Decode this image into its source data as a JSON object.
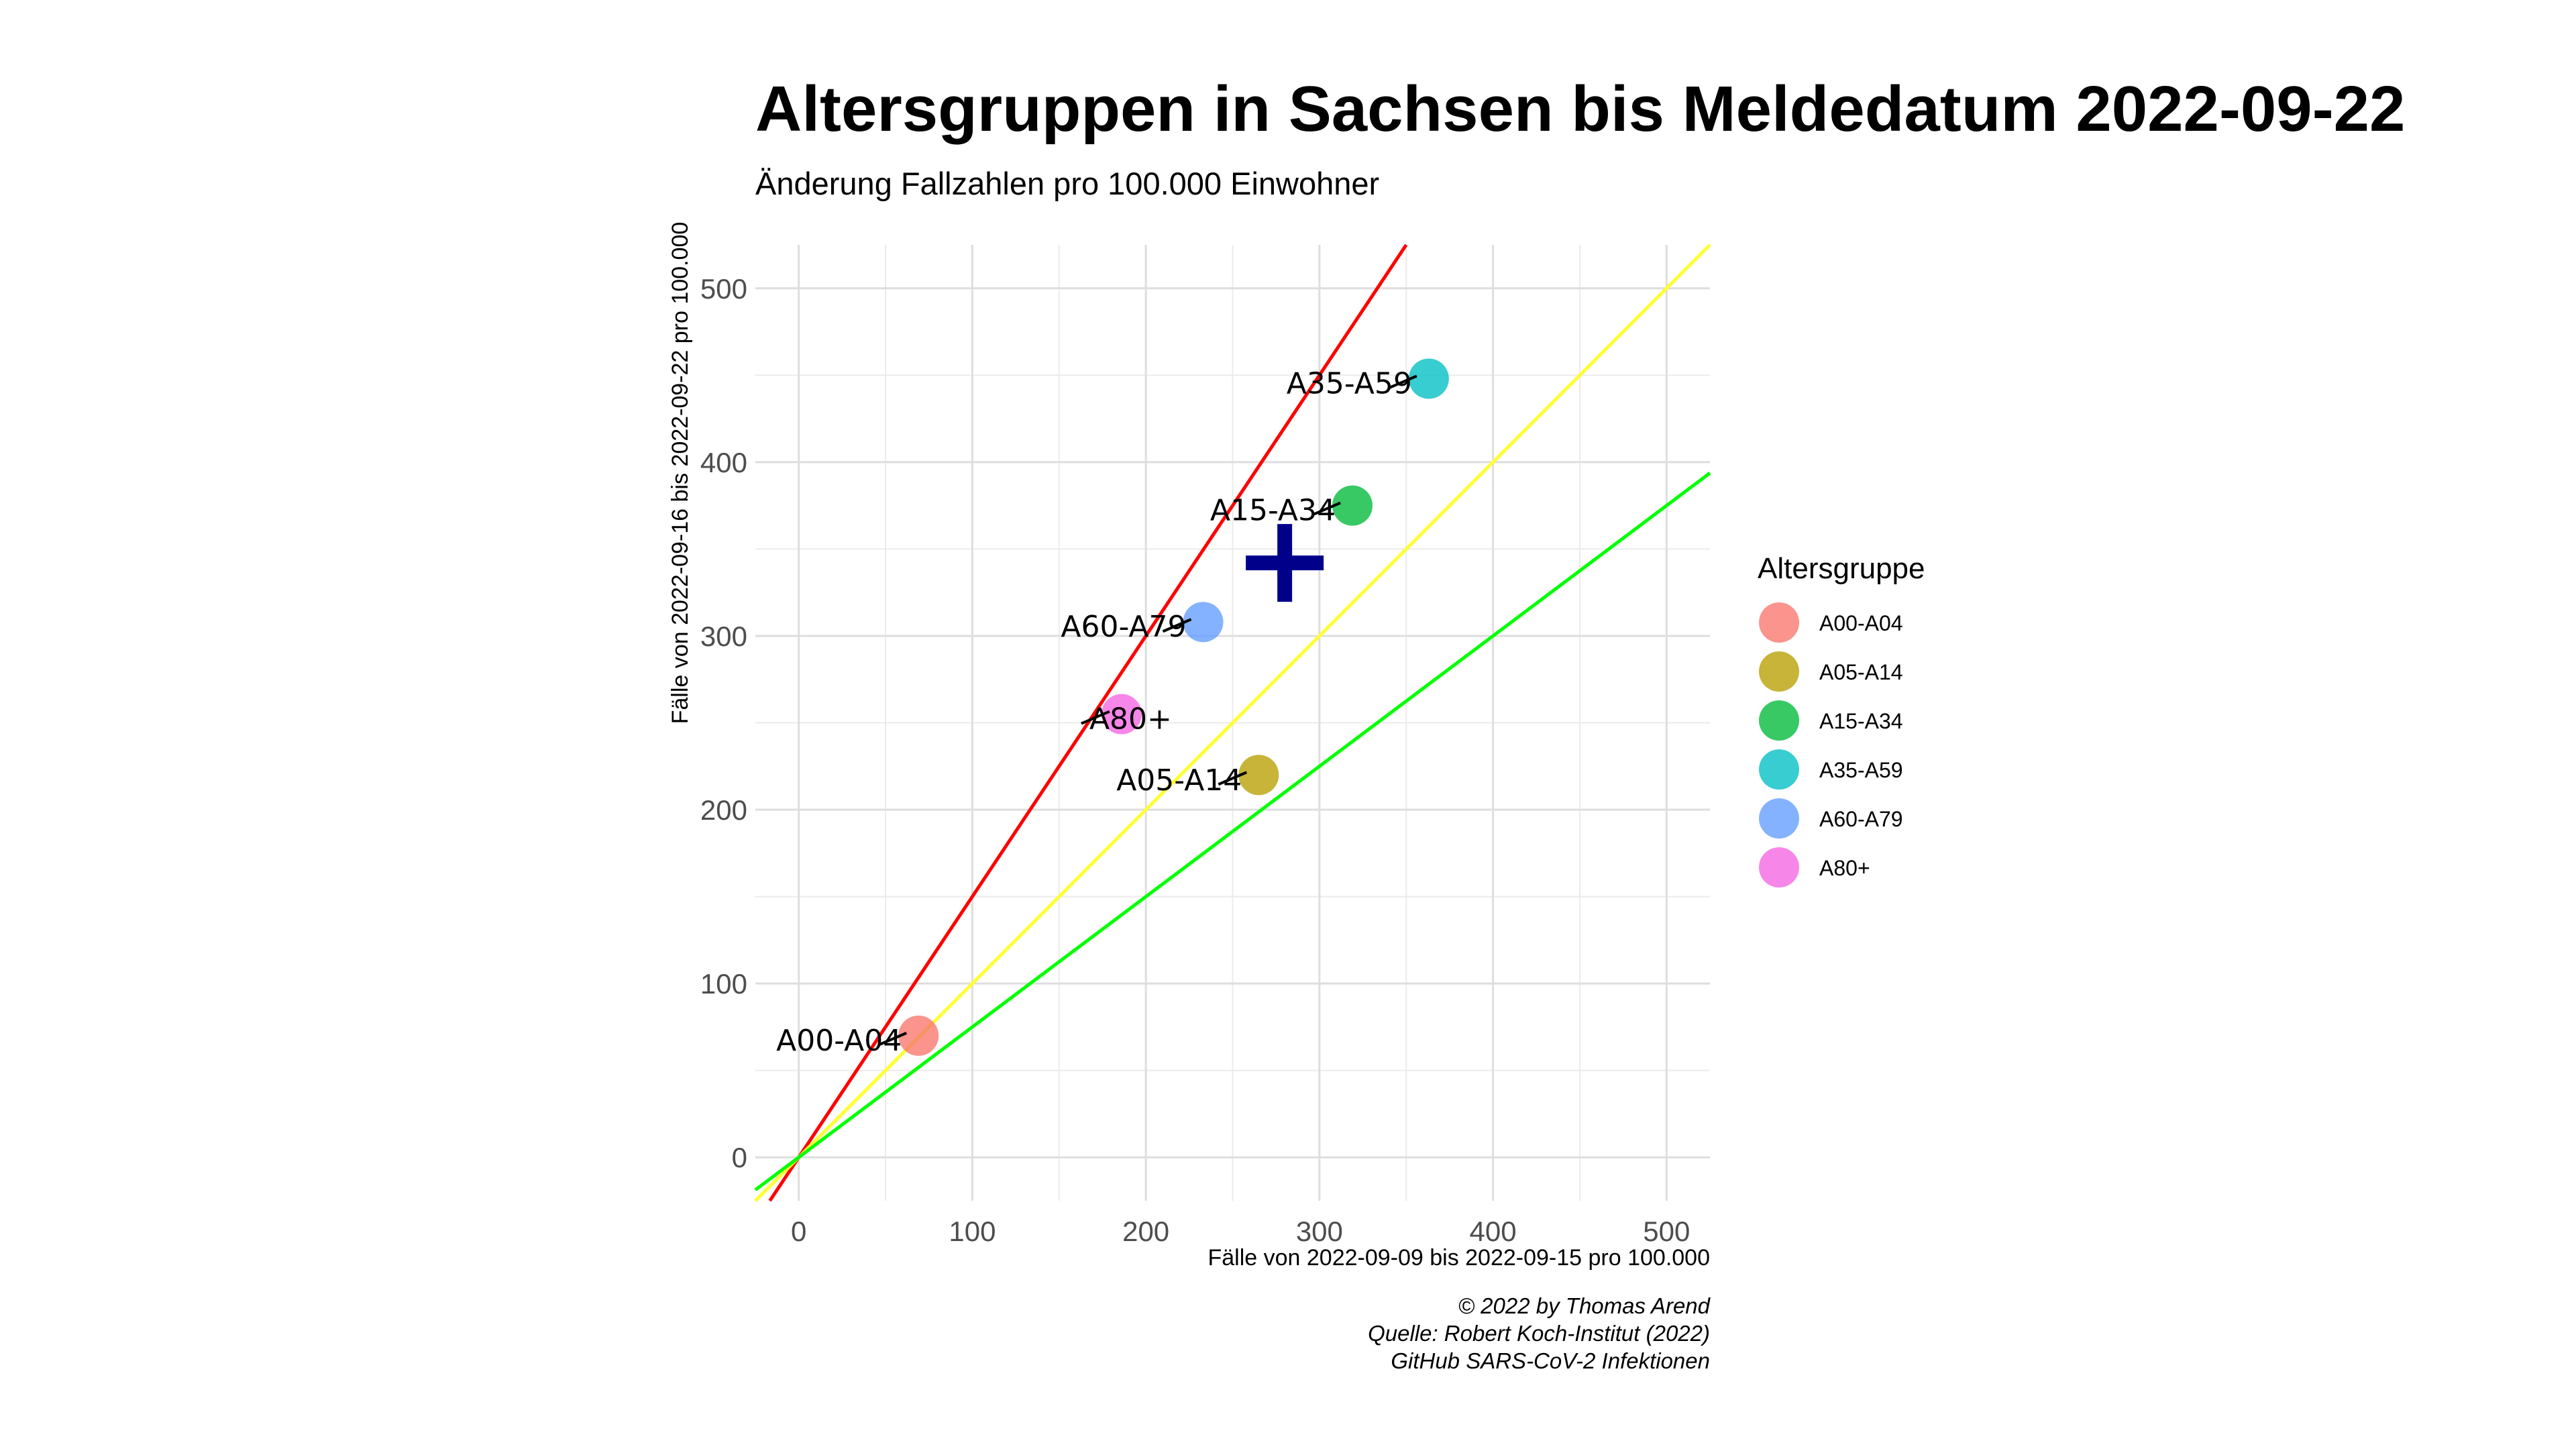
{
  "chart_data": {
    "type": "scatter",
    "title": "Altersgruppen in Sachsen bis Meldedatum 2022-09-22",
    "subtitle": "Änderung Fallzahlen pro 100.000 Einwohner",
    "xlabel": "Fälle von 2022-09-09 bis 2022-09-15 pro 100.000",
    "ylabel": "Fälle von 2022-09-16 bis 2022-09-22 pro 100.000",
    "xlim": [
      -25,
      525
    ],
    "ylim": [
      -25,
      525
    ],
    "xticks": [
      0,
      100,
      200,
      300,
      400,
      500
    ],
    "yticks": [
      0,
      100,
      200,
      300,
      400,
      500
    ],
    "grid": true,
    "legend": {
      "title": "Altersgruppe",
      "position": "right"
    },
    "series": [
      {
        "name": "A00-A04",
        "x": 69,
        "y": 70,
        "color": "#F8766D"
      },
      {
        "name": "A05-A14",
        "x": 265,
        "y": 220,
        "color": "#B79F00"
      },
      {
        "name": "A15-A34",
        "x": 319,
        "y": 375,
        "color": "#00BA38"
      },
      {
        "name": "A35-A59",
        "x": 363,
        "y": 448,
        "color": "#00BFC4"
      },
      {
        "name": "A60-A79",
        "x": 233,
        "y": 308,
        "color": "#619CFF"
      },
      {
        "name": "A80+",
        "x": 186,
        "y": 255,
        "color": "#F564E3"
      }
    ],
    "overall_marker": {
      "x": 280,
      "y": 342,
      "symbol": "plus",
      "color": "#00008B"
    },
    "reference_lines": [
      {
        "slope": 1.5,
        "color": "#FF0000"
      },
      {
        "slope": 1.0,
        "color": "#FFFF33"
      },
      {
        "slope": 0.75,
        "color": "#00FF00"
      }
    ],
    "caption": [
      "© 2022 by Thomas Arend",
      "Quelle: Robert Koch-Institut (2022)",
      "GitHub SARS-CoV-2 Infektionen"
    ]
  }
}
